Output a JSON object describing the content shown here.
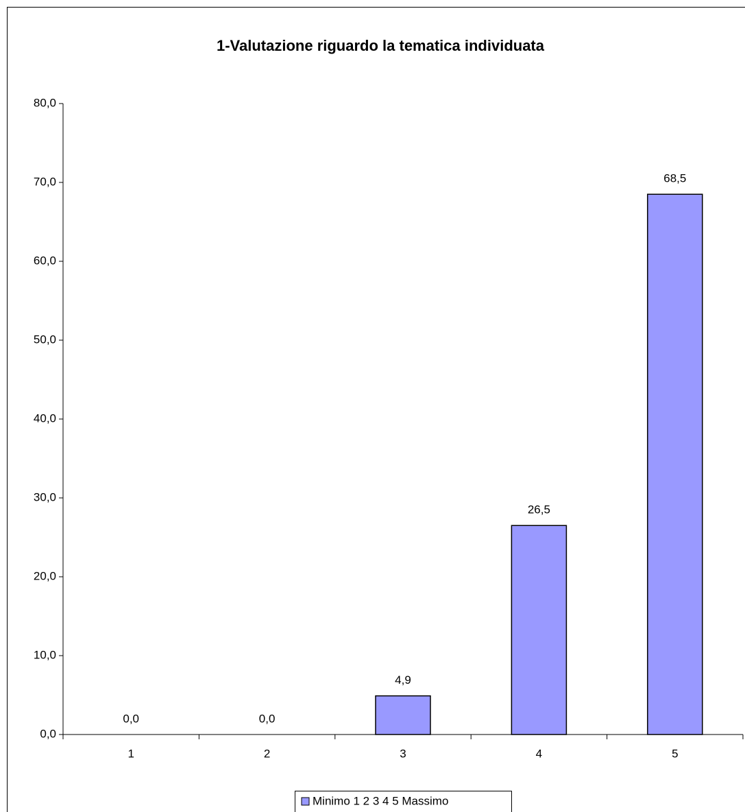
{
  "chart_data": {
    "type": "bar",
    "title": "1-Valutazione riguardo la tematica individuata",
    "categories": [
      "1",
      "2",
      "3",
      "4",
      "5"
    ],
    "series": [
      {
        "name": "Minimo 1 2 3 4 5 Massimo",
        "color": "#9999ff",
        "values": [
          0,
          0,
          4.9,
          26.5,
          68.5
        ],
        "value_labels": [
          "0,0",
          "0,0",
          "4,9",
          "26,5",
          "68,5"
        ]
      }
    ],
    "ylim": [
      0,
      80
    ],
    "yticks": [
      {
        "value": 0,
        "label": "0,0"
      },
      {
        "value": 10,
        "label": "10,0"
      },
      {
        "value": 20,
        "label": "20,0"
      },
      {
        "value": 30,
        "label": "30,0"
      },
      {
        "value": 40,
        "label": "40,0"
      },
      {
        "value": 50,
        "label": "50,0"
      },
      {
        "value": 60,
        "label": "60,0"
      },
      {
        "value": 70,
        "label": "70,0"
      },
      {
        "value": 80,
        "label": "80,0"
      }
    ],
    "grid": false
  }
}
